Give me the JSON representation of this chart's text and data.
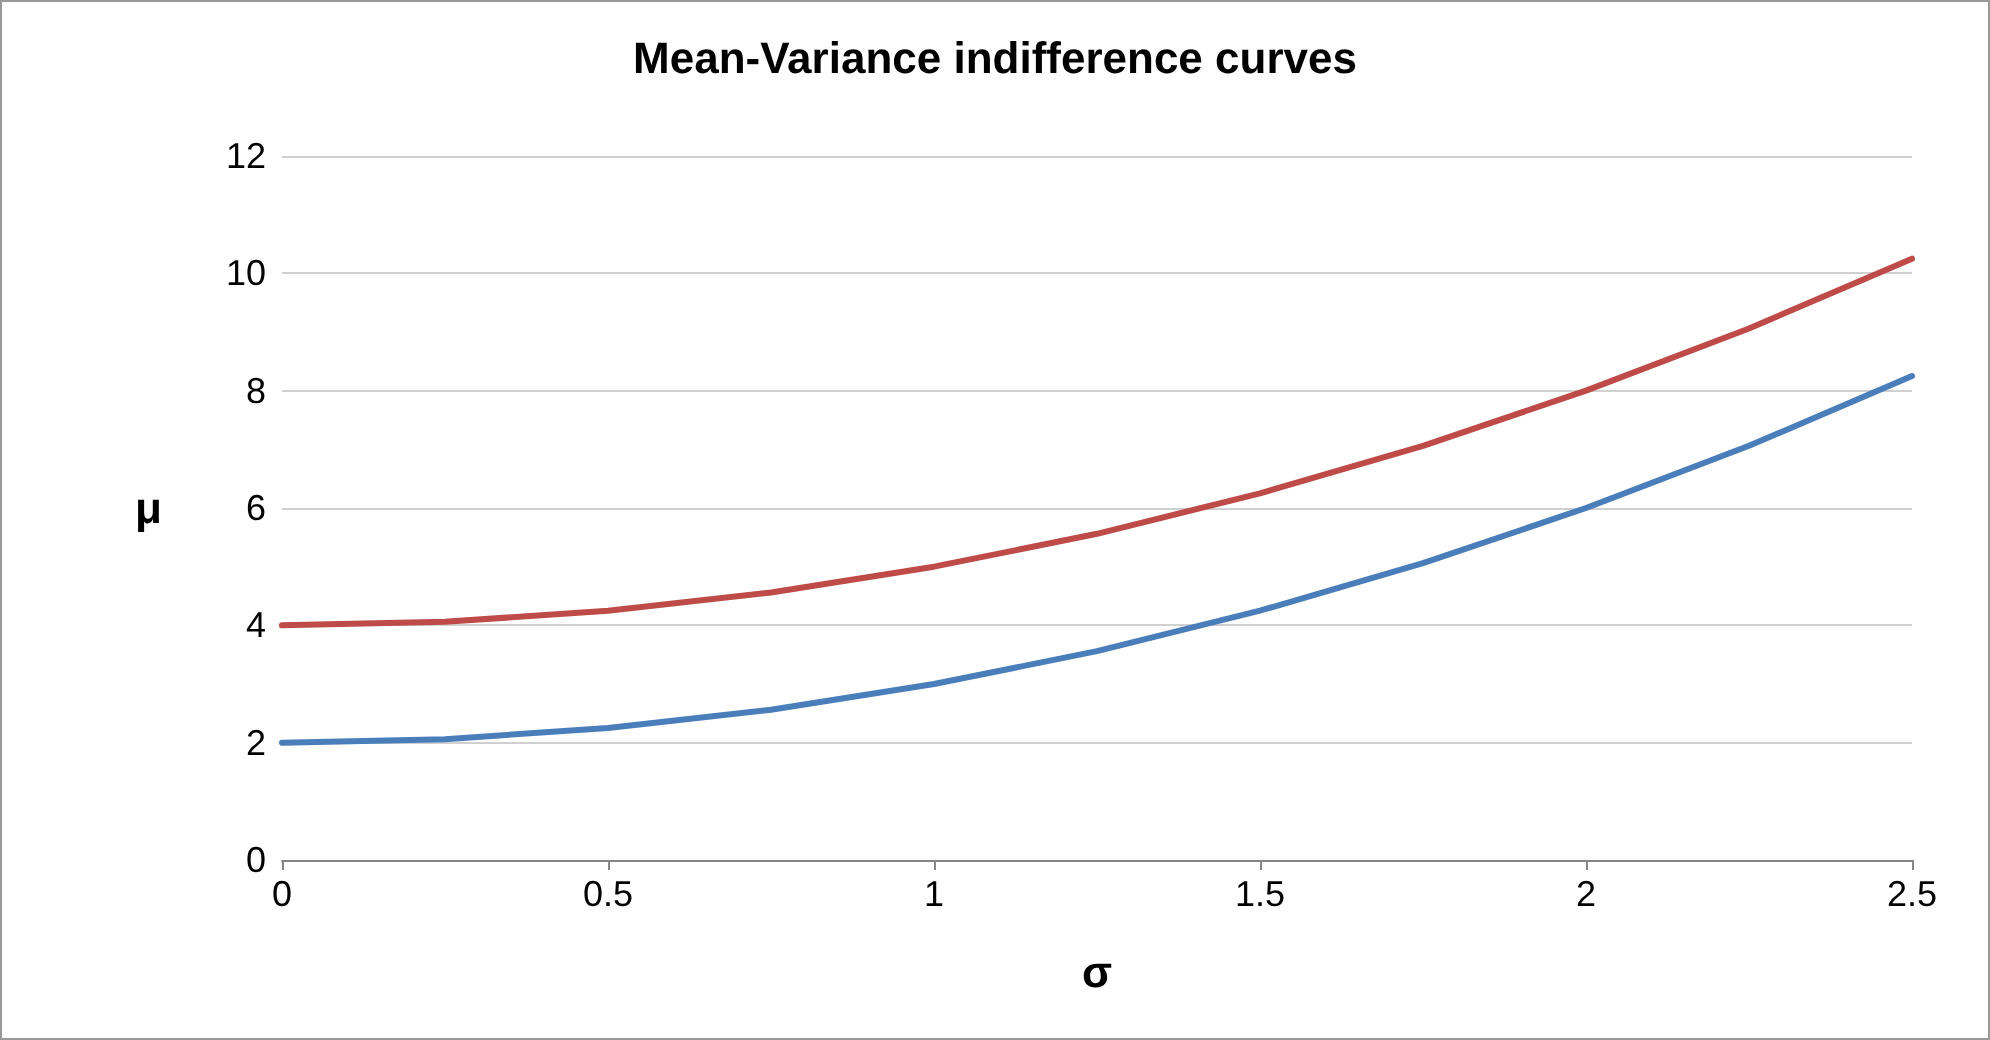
{
  "chart_data": {
    "type": "line",
    "title": "Mean-Variance indifference curves",
    "xlabel": "σ",
    "ylabel": "μ",
    "x": [
      0,
      0.25,
      0.5,
      0.75,
      1,
      1.25,
      1.5,
      1.75,
      2,
      2.25,
      2.5
    ],
    "series": [
      {
        "color": "#4a7ebb",
        "values": [
          2,
          2.06,
          2.25,
          2.56,
          3,
          3.56,
          4.25,
          5.06,
          6,
          7.06,
          8.25
        ]
      },
      {
        "color": "#be4b48",
        "values": [
          4,
          4.06,
          4.25,
          4.56,
          5,
          5.56,
          6.25,
          7.06,
          8,
          9.06,
          10.25
        ]
      }
    ],
    "xlim": [
      0,
      2.5
    ],
    "xticks": [
      0,
      0.5,
      1,
      1.5,
      2,
      2.5
    ],
    "ylim": [
      0,
      12
    ],
    "yticks": [
      0,
      2,
      4,
      6,
      8,
      10,
      12
    ],
    "grid": "y",
    "marker": "none",
    "line_style": "solid"
  }
}
